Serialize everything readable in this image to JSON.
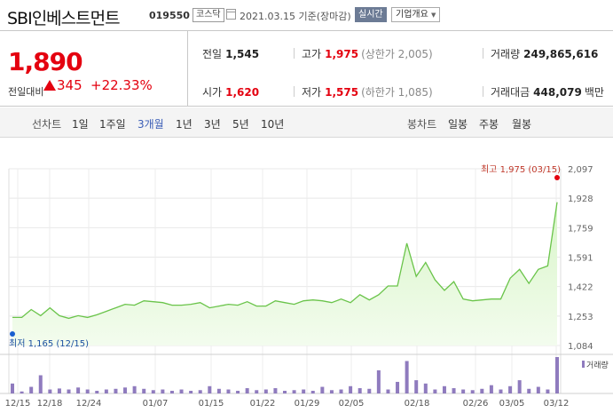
{
  "header": {
    "name": "SBI인베스트먼트",
    "code": "019550",
    "market": "코스닥",
    "date": "2021.03.15 기준(장마감)",
    "realtime": "실시간",
    "company_info": "기업개요"
  },
  "quote": {
    "price": "1,890",
    "change_label": "전일대비",
    "change": "345",
    "change_pct": "+22.33%",
    "prev_close_label": "전일",
    "prev_close": "1,545",
    "high_label": "고가",
    "high": "1,975",
    "high_sub": "(상한가 2,005)",
    "volume_label": "거래량",
    "volume": "249,865,616",
    "open_label": "시가",
    "open": "1,620",
    "low_label": "저가",
    "low": "1,575",
    "low_sub": "(하한가 1,085)",
    "value_label": "거래대금",
    "value": "448,079",
    "value_unit": "백만",
    "up_color": "#e4000f"
  },
  "periods": {
    "line_label": "선차트",
    "line_items": [
      "1일",
      "1주일",
      "3개월",
      "1년",
      "3년",
      "5년",
      "10년"
    ],
    "active": "3개월",
    "candle_label": "봉차트",
    "candle_items": [
      "일봉",
      "주봉",
      "월봉"
    ]
  },
  "chart_data": {
    "type": "area",
    "y_ticks": [
      "2,097",
      "1,928",
      "1,759",
      "1,591",
      "1,422",
      "1,253",
      "1,084"
    ],
    "ylim": [
      1084,
      2097
    ],
    "x_labels": [
      "12/15",
      "12/18",
      "12/24",
      "01/07",
      "01/15",
      "01/22",
      "01/29",
      "02/05",
      "02/18",
      "02/26",
      "03/05",
      "03/12"
    ],
    "max_annotation": "최고 1,975 (03/15)",
    "min_annotation": "최저 1,165 (12/15)",
    "volume_label": "거래량",
    "line_color": "#6ac44a",
    "volume_color": "#8f7bbe",
    "series": [
      {
        "values": [
          1245,
          1245,
          1290,
          1255,
          1300,
          1255,
          1240,
          1255,
          1245,
          1260,
          1280,
          1300,
          1320,
          1315,
          1340,
          1335,
          1330,
          1315,
          1315,
          1320,
          1330,
          1300,
          1310,
          1320,
          1315,
          1335,
          1310,
          1310,
          1340,
          1330,
          1320,
          1340,
          1345,
          1340,
          1330,
          1350,
          1330,
          1375,
          1345,
          1375,
          1425,
          1425,
          1670,
          1480,
          1560,
          1460,
          1400,
          1450,
          1350,
          1340,
          1345,
          1350,
          1350,
          1470,
          1520,
          1440,
          1520,
          1540,
          1905
        ]
      }
    ],
    "volume": [
      30,
      6,
      20,
      55,
      12,
      15,
      12,
      18,
      12,
      8,
      12,
      14,
      18,
      22,
      14,
      10,
      12,
      8,
      12,
      8,
      10,
      22,
      14,
      12,
      8,
      16,
      10,
      12,
      16,
      8,
      10,
      12,
      8,
      20,
      10,
      12,
      22,
      16,
      14,
      70,
      12,
      35,
      98,
      40,
      30,
      12,
      22,
      16,
      12,
      10,
      14,
      25,
      12,
      22,
      40,
      14,
      20,
      12,
      110
    ]
  }
}
